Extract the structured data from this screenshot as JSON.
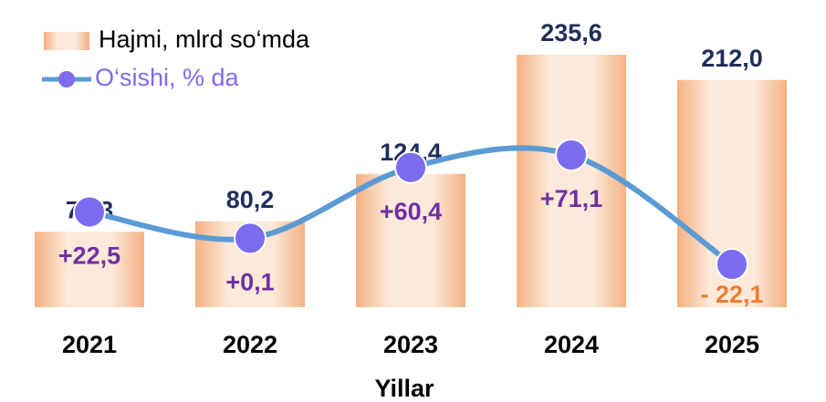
{
  "chart_data": {
    "type": "bar_line",
    "categories": [
      "2021",
      "2022",
      "2023",
      "2024",
      "2025"
    ],
    "x_label": "Yillar",
    "series": [
      {
        "name": "Hajmi, mlrd so‘mda",
        "type": "bar",
        "color": "#f4b183",
        "values": [
          70.3,
          80.2,
          124.4,
          235.6,
          212.0
        ],
        "value_labels": [
          "70,3",
          "80,2",
          "124,4",
          "235,6",
          "212,0"
        ]
      },
      {
        "name": "O‘sishi, % da",
        "type": "line",
        "axis": "y2",
        "color": "#5b9bd5",
        "marker_color": "#7b6cf0",
        "values": [
          22.5,
          0.1,
          60.4,
          71.1,
          -22.1
        ],
        "value_labels": [
          "+22,5",
          "+0,1",
          "+60,4",
          "+71,1",
          "- 22,1"
        ],
        "value_label_colors": [
          "#7030a0",
          "#7030a0",
          "#7030a0",
          "#7030a0",
          "#ed7d31"
        ]
      }
    ],
    "legend": "top-left"
  }
}
